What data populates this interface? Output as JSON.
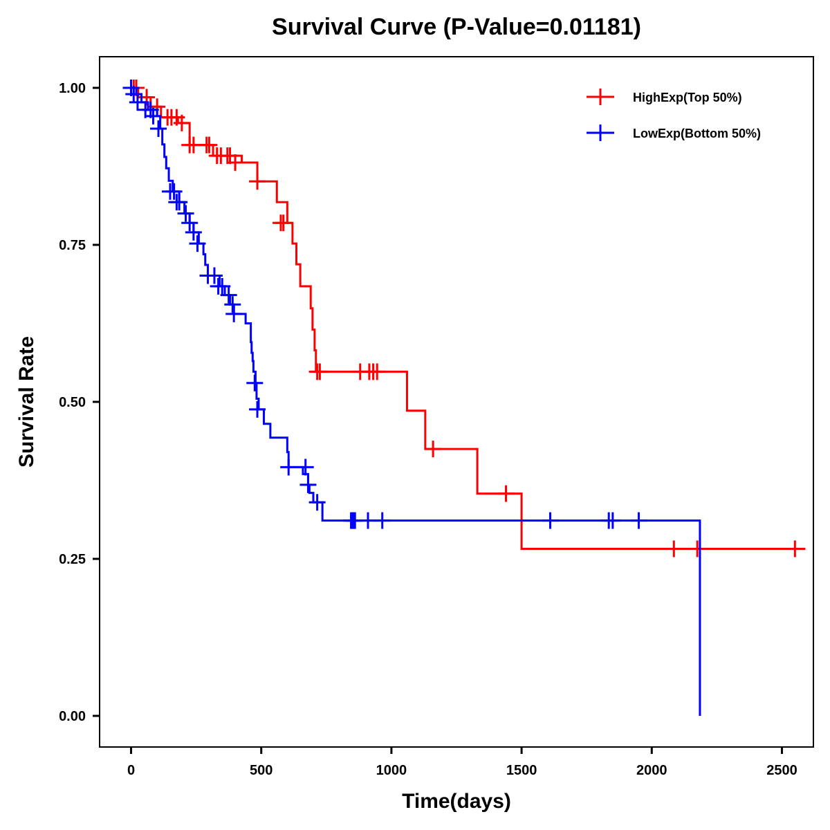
{
  "chart_data": {
    "type": "line",
    "subtype": "kaplan-meier step",
    "title": "Survival Curve (P-Value=0.01181)",
    "xlabel": "Time(days)",
    "ylabel": "Survival Rate",
    "xlim": [
      -120,
      2630
    ],
    "ylim": [
      -0.05,
      1.05
    ],
    "x_ticks": [
      0,
      500,
      1000,
      1500,
      2000,
      2500
    ],
    "x_tick_labels": [
      "0",
      "500",
      "1000",
      "1500",
      "2000",
      "2500"
    ],
    "y_ticks": [
      0.0,
      0.25,
      0.5,
      0.75,
      1.0
    ],
    "y_tick_labels": [
      "0.00",
      "0.25",
      "0.50",
      "0.75",
      "1.00"
    ],
    "grid": false,
    "legend_position": "top-right",
    "series": [
      {
        "name": "HighExp(Top 50%)",
        "color": "#ff0000",
        "steps": [
          [
            0,
            1.0
          ],
          [
            27,
            0.985
          ],
          [
            75,
            0.97
          ],
          [
            115,
            0.953
          ],
          [
            180,
            0.944
          ],
          [
            225,
            0.909
          ],
          [
            315,
            0.892
          ],
          [
            425,
            0.881
          ],
          [
            485,
            0.851
          ],
          [
            560,
            0.818
          ],
          [
            600,
            0.785
          ],
          [
            620,
            0.752
          ],
          [
            635,
            0.719
          ],
          [
            650,
            0.684
          ],
          [
            690,
            0.649
          ],
          [
            697,
            0.615
          ],
          [
            705,
            0.582
          ],
          [
            710,
            0.548
          ],
          [
            1060,
            0.486
          ],
          [
            1130,
            0.425
          ],
          [
            1330,
            0.354
          ],
          [
            1500,
            0.266
          ],
          [
            2590,
            0.266
          ]
        ],
        "censored": [
          [
            10,
            1.0
          ],
          [
            20,
            1.0
          ],
          [
            60,
            0.985
          ],
          [
            100,
            0.97
          ],
          [
            140,
            0.953
          ],
          [
            155,
            0.953
          ],
          [
            175,
            0.953
          ],
          [
            195,
            0.944
          ],
          [
            225,
            0.909
          ],
          [
            240,
            0.909
          ],
          [
            290,
            0.909
          ],
          [
            300,
            0.909
          ],
          [
            330,
            0.892
          ],
          [
            345,
            0.892
          ],
          [
            370,
            0.892
          ],
          [
            380,
            0.892
          ],
          [
            400,
            0.881
          ],
          [
            485,
            0.851
          ],
          [
            575,
            0.785
          ],
          [
            585,
            0.785
          ],
          [
            715,
            0.548
          ],
          [
            725,
            0.548
          ],
          [
            880,
            0.548
          ],
          [
            915,
            0.548
          ],
          [
            930,
            0.548
          ],
          [
            945,
            0.548
          ],
          [
            1160,
            0.425
          ],
          [
            1440,
            0.354
          ],
          [
            2085,
            0.266
          ],
          [
            2175,
            0.266
          ],
          [
            2550,
            0.266
          ]
        ]
      },
      {
        "name": "LowExp(Bottom 50%)",
        "color": "#0000ff",
        "steps": [
          [
            0,
            1.0
          ],
          [
            20,
            0.99
          ],
          [
            40,
            0.977
          ],
          [
            65,
            0.965
          ],
          [
            100,
            0.955
          ],
          [
            112,
            0.935
          ],
          [
            120,
            0.91
          ],
          [
            128,
            0.89
          ],
          [
            135,
            0.872
          ],
          [
            145,
            0.852
          ],
          [
            160,
            0.835
          ],
          [
            185,
            0.818
          ],
          [
            205,
            0.8
          ],
          [
            225,
            0.785
          ],
          [
            240,
            0.77
          ],
          [
            260,
            0.752
          ],
          [
            278,
            0.735
          ],
          [
            285,
            0.718
          ],
          [
            295,
            0.701
          ],
          [
            340,
            0.684
          ],
          [
            360,
            0.67
          ],
          [
            380,
            0.655
          ],
          [
            395,
            0.64
          ],
          [
            440,
            0.625
          ],
          [
            460,
            0.595
          ],
          [
            463,
            0.578
          ],
          [
            467,
            0.565
          ],
          [
            470,
            0.548
          ],
          [
            478,
            0.53
          ],
          [
            482,
            0.505
          ],
          [
            490,
            0.488
          ],
          [
            510,
            0.465
          ],
          [
            535,
            0.443
          ],
          [
            600,
            0.42
          ],
          [
            605,
            0.396
          ],
          [
            660,
            0.385
          ],
          [
            680,
            0.368
          ],
          [
            685,
            0.355
          ],
          [
            700,
            0.34
          ],
          [
            735,
            0.311
          ],
          [
            2185,
            0.311
          ],
          [
            2185,
            0.0
          ]
        ],
        "censored": [
          [
            0,
            1.0
          ],
          [
            10,
            0.99
          ],
          [
            25,
            0.977
          ],
          [
            55,
            0.965
          ],
          [
            75,
            0.965
          ],
          [
            85,
            0.955
          ],
          [
            105,
            0.935
          ],
          [
            150,
            0.835
          ],
          [
            165,
            0.835
          ],
          [
            175,
            0.818
          ],
          [
            185,
            0.818
          ],
          [
            210,
            0.8
          ],
          [
            225,
            0.785
          ],
          [
            240,
            0.77
          ],
          [
            255,
            0.752
          ],
          [
            295,
            0.701
          ],
          [
            320,
            0.701
          ],
          [
            335,
            0.684
          ],
          [
            350,
            0.684
          ],
          [
            375,
            0.67
          ],
          [
            390,
            0.655
          ],
          [
            395,
            0.64
          ],
          [
            475,
            0.53
          ],
          [
            485,
            0.488
          ],
          [
            605,
            0.396
          ],
          [
            670,
            0.396
          ],
          [
            680,
            0.368
          ],
          [
            715,
            0.34
          ],
          [
            845,
            0.311
          ],
          [
            850,
            0.311
          ],
          [
            855,
            0.311
          ],
          [
            860,
            0.311
          ],
          [
            910,
            0.311
          ],
          [
            965,
            0.311
          ],
          [
            1610,
            0.311
          ],
          [
            1835,
            0.311
          ],
          [
            1850,
            0.311
          ],
          [
            1950,
            0.311
          ]
        ]
      }
    ]
  }
}
